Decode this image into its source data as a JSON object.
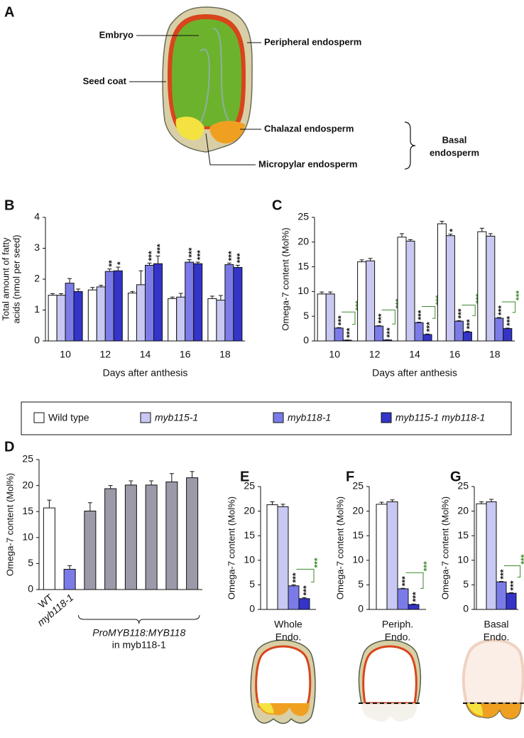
{
  "diagram": {
    "panel": "A",
    "labels": [
      "Embryo",
      "Peripheral endosperm",
      "Seed coat",
      "Chalazal endosperm",
      "Micropylar endosperm"
    ],
    "group_label": [
      "Basal",
      "endosperm"
    ]
  },
  "chart_data": [
    {
      "panel": "B",
      "type": "bar",
      "y_label": [
        "Total amount of fatty",
        "acids (nmol per seed)"
      ],
      "x_label": [
        "Days after anthesis"
      ],
      "categories": [
        "10",
        "12",
        "14",
        "16",
        "18"
      ],
      "ylim": [
        0,
        4
      ],
      "yticks": [
        0,
        1,
        2,
        3,
        4
      ],
      "series": [
        {
          "name": "Wild type",
          "color": "#ffffff",
          "values": [
            1.48,
            1.65,
            1.55,
            1.37,
            1.37
          ],
          "errors": [
            0.05,
            0.08,
            0.05,
            0.05,
            0.08
          ],
          "stars": [
            null,
            null,
            null,
            null,
            null
          ]
        },
        {
          "name": "myb115-1",
          "color": "#c8c8f2",
          "values": [
            1.48,
            1.75,
            1.82,
            1.42,
            1.32
          ],
          "errors": [
            0.05,
            0.05,
            0.45,
            0.12,
            0.15
          ],
          "stars": [
            null,
            null,
            null,
            null,
            null
          ]
        },
        {
          "name": "myb118-1",
          "color": "#7b7be8",
          "values": [
            1.87,
            2.25,
            2.45,
            2.55,
            2.47
          ],
          "errors": [
            0.15,
            0.08,
            0.07,
            0.08,
            0.05
          ],
          "stars": [
            null,
            "**",
            "***",
            "***",
            "***"
          ]
        },
        {
          "name": "myb115-1 myb118-1",
          "color": "#3434c8",
          "values": [
            1.6,
            2.27,
            2.5,
            2.5,
            2.38
          ],
          "errors": [
            0.08,
            0.12,
            0.25,
            0.05,
            0.07
          ],
          "stars": [
            null,
            "*",
            "***",
            "***",
            "***"
          ]
        }
      ]
    },
    {
      "panel": "C",
      "type": "bar",
      "y_label": [
        "Omega-7 content (Mol%)"
      ],
      "x_label": [
        "Days after anthesis"
      ],
      "categories": [
        "10",
        "12",
        "14",
        "16",
        "18"
      ],
      "ylim": [
        0,
        25
      ],
      "yticks": [
        0,
        5,
        10,
        15,
        20,
        25
      ],
      "comparison_color": "#3a8a2a",
      "comparison_labels": [
        "***",
        "***",
        "***",
        "***",
        "***"
      ],
      "series": [
        {
          "color": "#ffffff",
          "values": [
            9.5,
            16,
            21,
            23.7,
            22.1
          ],
          "errors": [
            0.4,
            0.4,
            0.7,
            0.5,
            0.7
          ],
          "stars": [
            null,
            null,
            null,
            null,
            null
          ]
        },
        {
          "color": "#c8c8f2",
          "values": [
            9.5,
            16.2,
            20.2,
            21.3,
            21.2
          ],
          "errors": [
            0.4,
            0.5,
            0.3,
            0.3,
            0.5
          ],
          "stars": [
            null,
            null,
            null,
            "*",
            null
          ]
        },
        {
          "color": "#7b7be8",
          "values": [
            2.6,
            3.0,
            3.7,
            4.0,
            4.6
          ],
          "errors": [
            0.1,
            0.1,
            0.1,
            0.1,
            0.15
          ],
          "stars": [
            "***",
            "***",
            "***",
            "***",
            "***"
          ]
        },
        {
          "color": "#3434c8",
          "values": [
            0.15,
            0.2,
            1.3,
            1.8,
            2.5
          ],
          "errors": [
            0.05,
            0.05,
            0.1,
            0.15,
            0.1
          ],
          "stars": [
            "***",
            "***",
            "***",
            "***",
            "***"
          ]
        }
      ]
    },
    {
      "panel": "D",
      "type": "simplebar",
      "y_label": [
        "Omega-7 content (Mol%)"
      ],
      "categories": [
        "WT",
        "myb118-1",
        null,
        null,
        null,
        null,
        null,
        null
      ],
      "group_label": [
        "ProMYB118:MYB118",
        "in myb118-1"
      ],
      "ylim": [
        0,
        25
      ],
      "yticks": [
        0,
        5,
        10,
        15,
        20,
        25
      ],
      "values": [
        15.7,
        3.9,
        15.1,
        19.4,
        20.1,
        20.1,
        20.7,
        21.5
      ],
      "errors": [
        1.5,
        0.7,
        1.6,
        0.6,
        0.8,
        0.8,
        1.6,
        1.2
      ],
      "colors": [
        "#ffffff",
        "#7b7be8",
        "#9c9aa8",
        "#9c9aa8",
        "#9c9aa8",
        "#9c9aa8",
        "#9c9aa8",
        "#9c9aa8"
      ]
    },
    {
      "panel": "E",
      "type": "bar",
      "y_label": [
        "Omega-7 content (Mol%)"
      ],
      "x_label": [
        "Whole",
        "Endo."
      ],
      "categories": [
        null
      ],
      "ylim": [
        0,
        25
      ],
      "yticks": [
        0,
        5,
        10,
        15,
        20,
        25
      ],
      "comparison_color": "#3a8a2a",
      "comparison_labels": [
        "***"
      ],
      "series": [
        {
          "color": "#ffffff",
          "values": [
            21.3
          ],
          "errors": [
            0.6
          ],
          "stars": [
            null
          ]
        },
        {
          "color": "#c8c8f2",
          "values": [
            20.9
          ],
          "errors": [
            0.5
          ],
          "stars": [
            null
          ]
        },
        {
          "color": "#7b7be8",
          "values": [
            4.8
          ],
          "errors": [
            0.2
          ],
          "stars": [
            "***"
          ]
        },
        {
          "color": "#3434c8",
          "values": [
            2.2
          ],
          "errors": [
            0.2
          ],
          "stars": [
            "***"
          ]
        }
      ]
    },
    {
      "panel": "F",
      "type": "bar",
      "y_label": [
        "Omega-7 content (Mol%)"
      ],
      "x_label": [
        "Periph.",
        "Endo."
      ],
      "categories": [
        null
      ],
      "ylim": [
        0,
        25
      ],
      "yticks": [
        0,
        5,
        10,
        15,
        20,
        25
      ],
      "comparison_color": "#3a8a2a",
      "comparison_labels": [
        "***"
      ],
      "series": [
        {
          "color": "#ffffff",
          "values": [
            21.4
          ],
          "errors": [
            0.4
          ],
          "stars": [
            null
          ]
        },
        {
          "color": "#c8c8f2",
          "values": [
            21.9
          ],
          "errors": [
            0.4
          ],
          "stars": [
            null
          ]
        },
        {
          "color": "#7b7be8",
          "values": [
            4.2
          ],
          "errors": [
            0.1
          ],
          "stars": [
            "***"
          ]
        },
        {
          "color": "#3434c8",
          "values": [
            1.0
          ],
          "errors": [
            0.1
          ],
          "stars": [
            "***"
          ]
        }
      ]
    },
    {
      "panel": "G",
      "type": "bar",
      "y_label": [
        "Omega-7 content (Mol%)"
      ],
      "x_label": [
        "Basal",
        "Endo."
      ],
      "categories": [
        null
      ],
      "ylim": [
        0,
        25
      ],
      "yticks": [
        0,
        5,
        10,
        15,
        20,
        25
      ],
      "comparison_color": "#3a8a2a",
      "comparison_labels": [
        "***"
      ],
      "series": [
        {
          "color": "#ffffff",
          "values": [
            21.5
          ],
          "errors": [
            0.4
          ],
          "stars": [
            null
          ]
        },
        {
          "color": "#c8c8f2",
          "values": [
            21.9
          ],
          "errors": [
            0.5
          ],
          "stars": [
            null
          ]
        },
        {
          "color": "#7b7be8",
          "values": [
            5.6
          ],
          "errors": [
            0.1
          ],
          "stars": [
            "***"
          ]
        },
        {
          "color": "#3434c8",
          "values": [
            3.3
          ],
          "errors": [
            0.1
          ],
          "stars": [
            "***"
          ]
        }
      ]
    }
  ]
}
